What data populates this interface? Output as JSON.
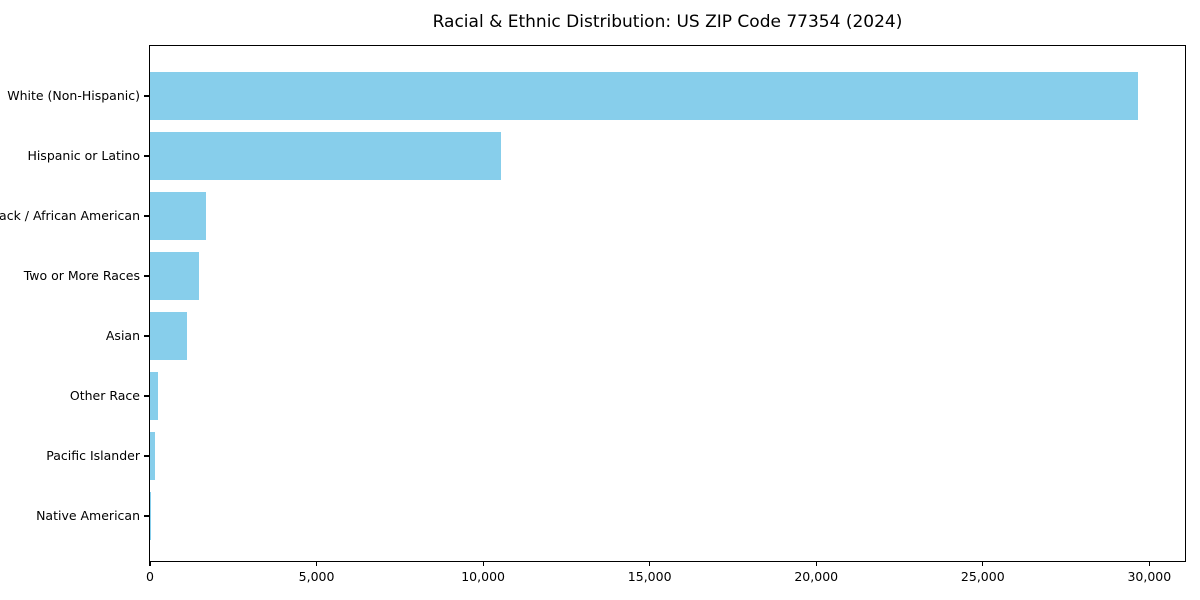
{
  "chart_data": {
    "type": "bar",
    "orientation": "horizontal",
    "title": "Racial & Ethnic Distribution: US ZIP Code 77354 (2024)",
    "categories": [
      "White (Non-Hispanic)",
      "Hispanic or Latino",
      "Black / African American",
      "Two or More Races",
      "Asian",
      "Other Race",
      "Pacific Islander",
      "Native American"
    ],
    "values": [
      29650,
      10550,
      1670,
      1460,
      1120,
      240,
      160,
      30
    ],
    "xlabel": "",
    "ylabel": "",
    "xlim": [
      0,
      31130
    ],
    "xticks": [
      0,
      5000,
      10000,
      15000,
      20000,
      25000,
      30000
    ],
    "xtick_labels": [
      "0",
      "5,000",
      "10,000",
      "15,000",
      "20,000",
      "25,000",
      "30,000"
    ],
    "bar_color": "#87CEEB",
    "frame_color": "#000000",
    "background_color": "#ffffff",
    "grid": false,
    "legend": null
  }
}
